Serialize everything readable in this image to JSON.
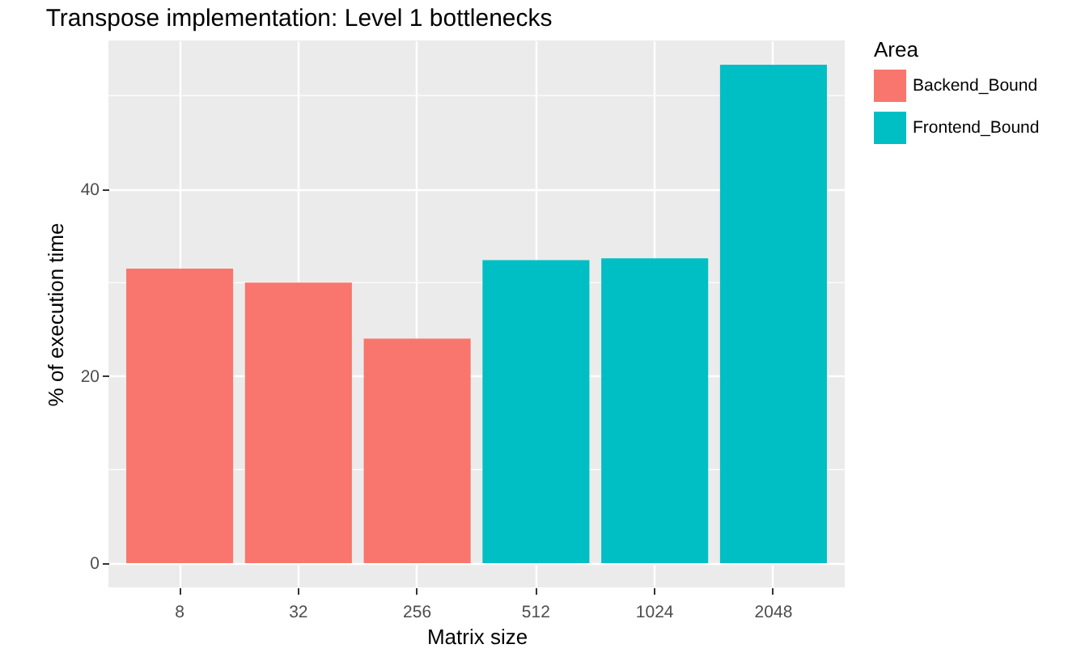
{
  "chart_data": {
    "type": "bar",
    "title": "Transpose implementation: Level 1 bottlenecks",
    "xlabel": "Matrix size",
    "ylabel": "% of execution time",
    "legend_title": "Area",
    "categories": [
      "8",
      "32",
      "256",
      "512",
      "1024",
      "2048"
    ],
    "series": [
      {
        "name": "Backend_Bound",
        "color": "#f8766d",
        "values": [
          31.5,
          30.0,
          24.0,
          null,
          null,
          null
        ]
      },
      {
        "name": "Frontend_Bound",
        "color": "#00bfc4",
        "values": [
          null,
          null,
          null,
          32.4,
          32.6,
          53.3
        ]
      }
    ],
    "ylim": [
      -2.6,
      55.9
    ],
    "yticks": [
      0,
      20,
      40
    ],
    "grid": true,
    "legend": "right"
  }
}
